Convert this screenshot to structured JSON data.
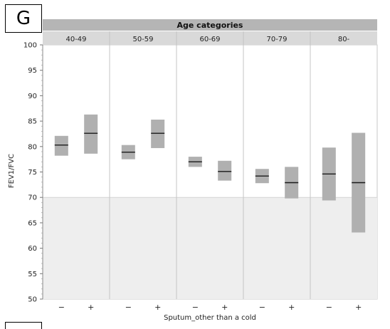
{
  "panel_letter": "G",
  "chart_data": {
    "type": "box",
    "title": "Age categories",
    "xlabel": "Sputum_other than a cold",
    "ylabel": "FEV1/FVC",
    "ylim": [
      50,
      100
    ],
    "yticks": [
      50,
      55,
      60,
      65,
      70,
      75,
      80,
      85,
      90,
      95,
      100
    ],
    "reference_line": 70,
    "shaded_region": "below 70",
    "grid": false,
    "age_groups": [
      "40-49",
      "50-59",
      "60-69",
      "70-79",
      "80-"
    ],
    "sputum_levels": [
      "−",
      "+"
    ],
    "boxes": [
      {
        "age": "40-49",
        "sputum": "−",
        "low": 78.2,
        "mid": 80.3,
        "high": 82.1
      },
      {
        "age": "40-49",
        "sputum": "+",
        "low": 78.6,
        "mid": 82.6,
        "high": 86.3
      },
      {
        "age": "50-59",
        "sputum": "−",
        "low": 77.5,
        "mid": 78.9,
        "high": 80.3
      },
      {
        "age": "50-59",
        "sputum": "+",
        "low": 79.7,
        "mid": 82.6,
        "high": 85.3
      },
      {
        "age": "60-69",
        "sputum": "−",
        "low": 76.0,
        "mid": 77.0,
        "high": 78.0
      },
      {
        "age": "60-69",
        "sputum": "+",
        "low": 73.3,
        "mid": 75.1,
        "high": 77.2
      },
      {
        "age": "70-79",
        "sputum": "−",
        "low": 72.8,
        "mid": 74.2,
        "high": 75.6
      },
      {
        "age": "70-79",
        "sputum": "+",
        "low": 69.8,
        "mid": 72.9,
        "high": 76.0
      },
      {
        "age": "80-",
        "sputum": "−",
        "low": 69.4,
        "mid": 74.6,
        "high": 79.8
      },
      {
        "age": "80-",
        "sputum": "+",
        "low": 63.1,
        "mid": 72.9,
        "high": 82.7
      }
    ],
    "colors": {
      "box": "#b0b0b0",
      "median": "#1a1a1a",
      "shaded": "#eeeeee",
      "header_title_bg": "#b5b5b5",
      "header_groups_bg": "#d9d9d9"
    }
  }
}
